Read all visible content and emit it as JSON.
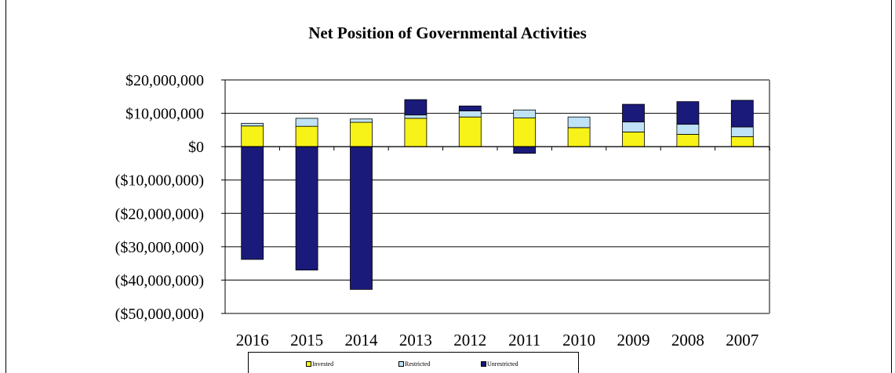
{
  "chart_data": {
    "type": "bar",
    "stacked": true,
    "title": "Net Position of Governmental Activities",
    "categories": [
      "2016",
      "2015",
      "2014",
      "2013",
      "2012",
      "2011",
      "2010",
      "2009",
      "2008",
      "2007"
    ],
    "series": [
      {
        "name": "Invested",
        "color": "#f7f218",
        "values": [
          6200000,
          6100000,
          7300000,
          8500000,
          8900000,
          8600000,
          5700000,
          4400000,
          3700000,
          3000000
        ]
      },
      {
        "name": "Restricted",
        "color": "#bfe2f6",
        "values": [
          800000,
          2400000,
          1000000,
          1000000,
          1800000,
          2400000,
          3200000,
          3000000,
          3000000,
          2900000
        ]
      },
      {
        "name": "Unrestricted",
        "color": "#1a1a7a",
        "values": [
          -33800000,
          -37000000,
          -42800000,
          4600000,
          1500000,
          -2000000,
          0,
          5300000,
          6800000,
          8000000
        ]
      }
    ],
    "ylim": [
      -50000000,
      20000000
    ],
    "yticks": [
      "$20,000,000",
      "$10,000,000",
      "$0",
      "($10,000,000)",
      "($20,000,000)",
      "($30,000,000)",
      "($40,000,000)",
      "($50,000,000)"
    ],
    "legend_position": "bottom",
    "grid": true
  },
  "legend": {
    "invested": "Invested",
    "restricted": "Restricted",
    "unrestricted": "Unrestricted"
  }
}
